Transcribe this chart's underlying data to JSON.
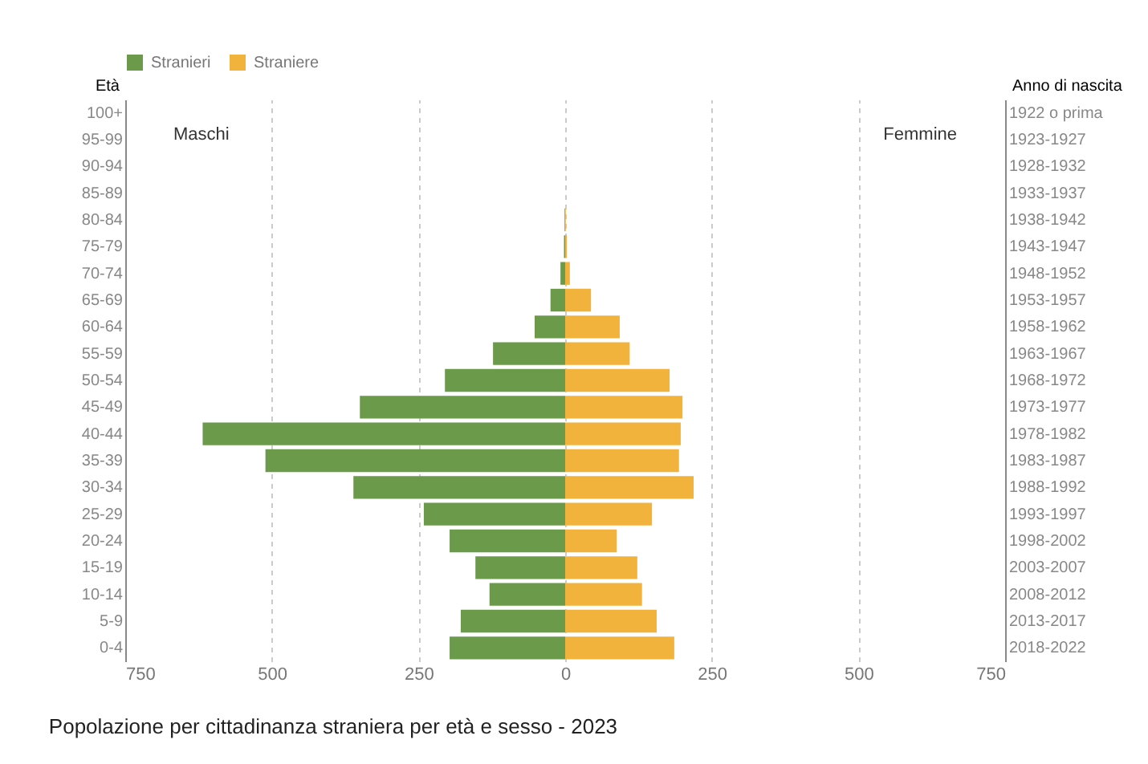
{
  "chart_data": {
    "type": "bar",
    "orientation": "horizontal",
    "title": "Popolazione per cittadinanza straniera per età e sesso - 2023",
    "ylabel": "Età",
    "y2label": "Anno di nascita",
    "categories": [
      "100+",
      "95-99",
      "90-94",
      "85-89",
      "80-84",
      "75-79",
      "70-74",
      "65-69",
      "60-64",
      "55-59",
      "50-54",
      "45-49",
      "40-44",
      "35-39",
      "30-34",
      "25-29",
      "20-24",
      "15-19",
      "10-14",
      "5-9",
      "0-4"
    ],
    "y2_categories": [
      "1922 o prima",
      "1923-1927",
      "1928-1932",
      "1933-1937",
      "1938-1942",
      "1943-1947",
      "1948-1952",
      "1953-1957",
      "1958-1962",
      "1963-1967",
      "1968-1972",
      "1973-1977",
      "1978-1982",
      "1983-1987",
      "1988-1992",
      "1993-1997",
      "1998-2002",
      "2003-2007",
      "2008-2012",
      "2013-2017",
      "2018-2022"
    ],
    "series": [
      {
        "name": "Stranieri",
        "color": "#6a9a4a",
        "values": [
          0,
          0,
          0,
          0,
          -1,
          -2,
          -8,
          -25,
          -52,
          -123,
          -205,
          -350,
          -618,
          -511,
          -361,
          -241,
          -197,
          -153,
          -129,
          -178,
          -197
        ]
      },
      {
        "name": "Straniere",
        "color": "#f2b33d",
        "values": [
          0,
          0,
          0,
          0,
          1,
          3,
          8,
          44,
          93,
          110,
          178,
          200,
          197,
          194,
          219,
          148,
          88,
          123,
          131,
          156,
          186
        ]
      }
    ],
    "xlim": [
      -750,
      750
    ],
    "xticks": [
      {
        "value": -750,
        "label": "750"
      },
      {
        "value": -500,
        "label": "500"
      },
      {
        "value": -250,
        "label": "250"
      },
      0,
      250,
      500,
      750
    ],
    "annotations": [
      "Maschi",
      "Femmine"
    ],
    "stacked": true,
    "grid": "x",
    "legend": "top"
  }
}
